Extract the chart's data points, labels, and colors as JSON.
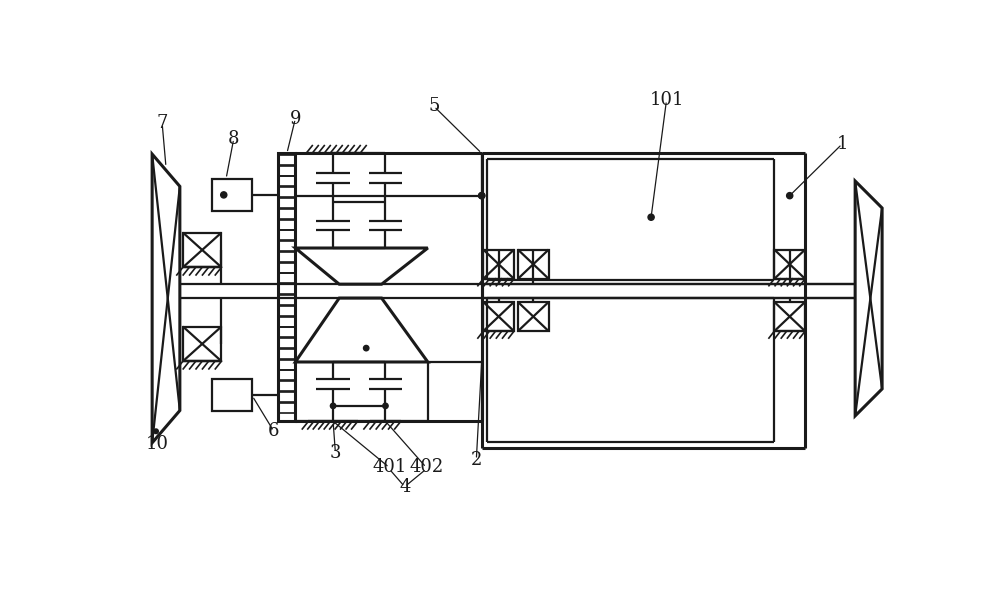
{
  "bg_color": "#ffffff",
  "line_color": "#1a1a1a",
  "lw": 1.6,
  "lw_thick": 2.2,
  "lw_thin": 1.2
}
